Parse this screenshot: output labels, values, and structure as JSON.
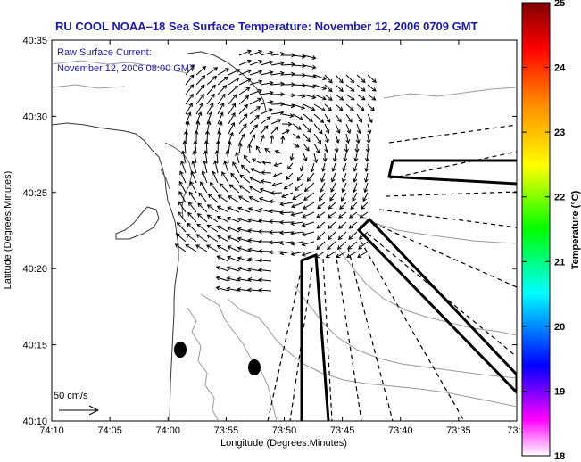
{
  "chart_data": {
    "type": "vector-field",
    "title": "RU COOL  NOAA–18  Sea Surface Temperature:  November 12, 2006 0709 GMT",
    "annotation": [
      "Raw Surface Current:",
      "November 12, 2006 08:00 GMT"
    ],
    "xlabel": "Longitude (Degrees:Minutes)",
    "ylabel": "Latitude (Degrees:Minutes)",
    "x_ticks": [
      "74:10",
      "74:05",
      "74:00",
      "73:55",
      "73:50",
      "73:45",
      "73:40",
      "73:35",
      "73:3"
    ],
    "y_ticks": [
      "40:10",
      "40:15",
      "40:20",
      "40:25",
      "40:30",
      "40:35"
    ],
    "xlim_min": [
      -74.1667,
      -73.5
    ],
    "ylim_min": [
      40.1667,
      40.5833
    ],
    "scale_label": "50 cm/s",
    "colorbar": {
      "label": "Temperature (°C)",
      "ticks": [
        "18",
        "19",
        "20",
        "21",
        "22",
        "23",
        "24",
        "25"
      ],
      "range": [
        18,
        25
      ],
      "colors": [
        "#ffffff",
        "#ff00ff",
        "#0000ff",
        "#00ffff",
        "#00ff00",
        "#ffff00",
        "#ff8800",
        "#ff0000",
        "#800000"
      ]
    },
    "grid": false
  }
}
